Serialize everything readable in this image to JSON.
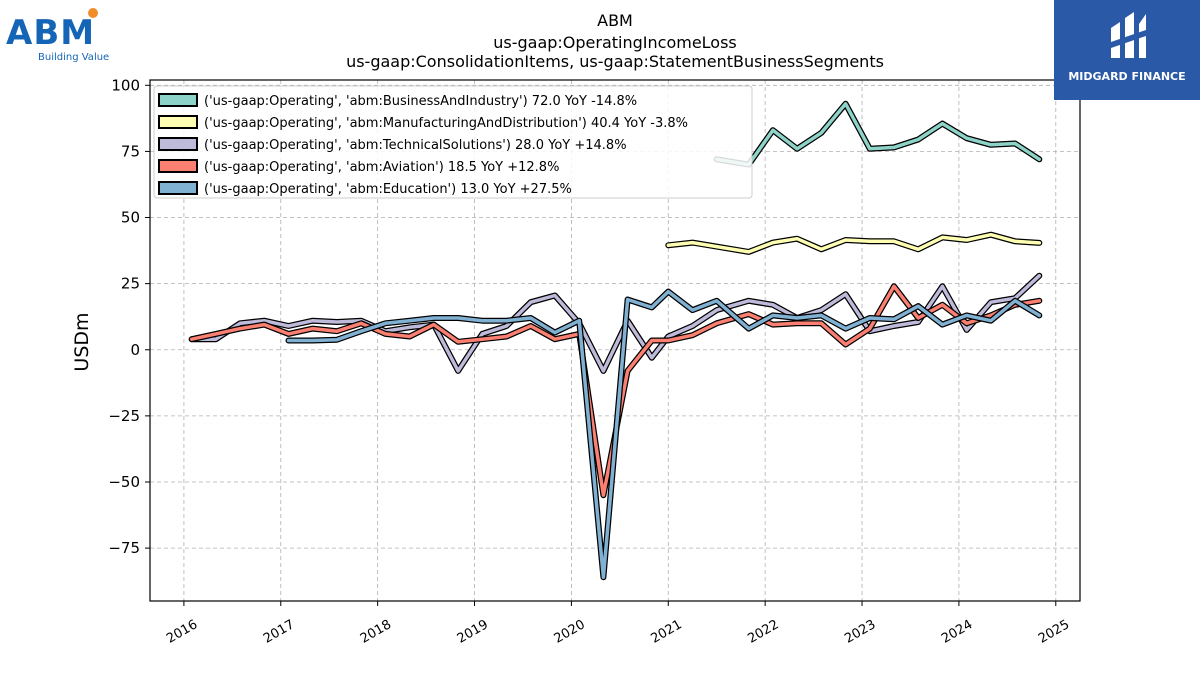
{
  "chart_data": {
    "type": "line",
    "title": [
      "ABM",
      "us-gaap:OperatingIncomeLoss",
      "us-gaap:ConsolidationItems, us-gaap:StatementBusinessSegments"
    ],
    "xlabel": "",
    "ylabel": "USDm",
    "xlim": [
      2015.65,
      2025.25
    ],
    "ylim": [
      -95,
      102
    ],
    "x_ticks": [
      2016,
      2017,
      2018,
      2019,
      2020,
      2021,
      2022,
      2023,
      2024,
      2025
    ],
    "y_ticks": [
      -75,
      -50,
      -25,
      0,
      25,
      50,
      75,
      100
    ],
    "grid": true,
    "legend_position": "top-left",
    "series": [
      {
        "name": "('us-gaap:Operating', 'abm:BusinessAndIndustry') 72.0 YoY -14.8%",
        "color": "#8dd3c7",
        "x": [
          2021.5,
          2021.83,
          2022.08,
          2022.33,
          2022.58,
          2022.83,
          2023.08,
          2023.33,
          2023.58,
          2023.83,
          2024.08,
          2024.33,
          2024.58,
          2024.83
        ],
        "y": [
          72,
          70,
          83,
          76,
          82,
          93,
          76,
          76.5,
          79.5,
          85.5,
          80,
          77.5,
          78,
          72
        ]
      },
      {
        "name": "('us-gaap:Operating', 'abm:ManufacturingAndDistribution') 40.4 YoY -3.8%",
        "color": "#ffffb3",
        "x": [
          2021.0,
          2021.25,
          2021.5,
          2021.83,
          2022.08,
          2022.33,
          2022.58,
          2022.83,
          2023.08,
          2023.33,
          2023.58,
          2023.83,
          2024.08,
          2024.33,
          2024.58,
          2024.83
        ],
        "y": [
          39.5,
          40.5,
          39,
          37,
          40.5,
          42,
          38,
          41.5,
          41,
          41,
          38,
          42.5,
          41.5,
          43.5,
          41,
          40.4
        ]
      },
      {
        "name": "('us-gaap:Operating', 'abm:TechnicalSolutions') 28.0 YoY +14.8%",
        "color": "#bebada",
        "x": [
          2016.08,
          2016.33,
          2016.58,
          2016.83,
          2017.08,
          2017.33,
          2017.58,
          2017.83,
          2018.08,
          2018.33,
          2018.58,
          2018.83,
          2019.08,
          2019.33,
          2019.58,
          2019.83,
          2020.08,
          2020.33,
          2020.58,
          2020.83,
          2021.0,
          2021.25,
          2021.5,
          2021.83,
          2022.08,
          2022.33,
          2022.58,
          2022.83,
          2023.08,
          2023.33,
          2023.58,
          2023.83,
          2024.08,
          2024.33,
          2024.58,
          2024.83
        ],
        "y": [
          4,
          4,
          10,
          11,
          9,
          11,
          10.5,
          11,
          7,
          8.5,
          9.5,
          -8,
          6,
          9,
          18,
          20.5,
          10,
          -8,
          11,
          -3,
          5,
          9,
          15,
          18.5,
          17,
          12,
          15,
          21,
          7,
          9,
          10.5,
          24,
          7.5,
          18,
          19.5,
          28
        ]
      },
      {
        "name": "('us-gaap:Operating', 'abm:Aviation') 18.5 YoY +12.8%",
        "color": "#fb8072",
        "x": [
          2016.08,
          2016.33,
          2016.58,
          2016.83,
          2017.08,
          2017.33,
          2017.58,
          2017.83,
          2018.08,
          2018.33,
          2018.58,
          2018.83,
          2019.08,
          2019.33,
          2019.58,
          2019.83,
          2020.08,
          2020.33,
          2020.58,
          2020.83,
          2021.0,
          2021.25,
          2021.5,
          2021.83,
          2022.08,
          2022.33,
          2022.58,
          2022.83,
          2023.08,
          2023.33,
          2023.58,
          2023.83,
          2024.08,
          2024.33,
          2024.58,
          2024.83
        ],
        "y": [
          4,
          6,
          8,
          9.5,
          6,
          8,
          7,
          10,
          6,
          5,
          9.5,
          3,
          4,
          5,
          9,
          4,
          6,
          -55,
          -8,
          3.5,
          3.5,
          5.5,
          10,
          13.5,
          9.5,
          10,
          10,
          2,
          8,
          24,
          12,
          17,
          10,
          13,
          17,
          18.5
        ]
      },
      {
        "name": "('us-gaap:Operating', 'abm:Education') 13.0 YoY +27.5%",
        "color": "#80b1d3",
        "x": [
          2017.08,
          2017.33,
          2017.58,
          2017.83,
          2018.08,
          2018.33,
          2018.58,
          2018.83,
          2019.08,
          2019.33,
          2019.58,
          2019.83,
          2020.08,
          2020.33,
          2020.58,
          2020.83,
          2021.0,
          2021.25,
          2021.5,
          2021.83,
          2022.08,
          2022.33,
          2022.58,
          2022.83,
          2023.08,
          2023.33,
          2023.58,
          2023.83,
          2024.08,
          2024.33,
          2024.58,
          2024.83
        ],
        "y": [
          3.5,
          3.5,
          3.8,
          7,
          10,
          11,
          12,
          12,
          11,
          11,
          12,
          6.5,
          11,
          -86,
          19,
          16,
          22,
          15,
          18.5,
          8,
          13,
          12,
          13,
          8,
          12,
          11.5,
          16.5,
          9.5,
          13,
          11,
          18.5,
          13
        ]
      }
    ]
  },
  "logos": {
    "left": {
      "text": "ABM",
      "subtitle": "Building Value",
      "accent": "#f28c28",
      "color": "#1565b7"
    },
    "right": {
      "text": "MIDGARD FINANCE",
      "background": "#2a59a8"
    }
  }
}
